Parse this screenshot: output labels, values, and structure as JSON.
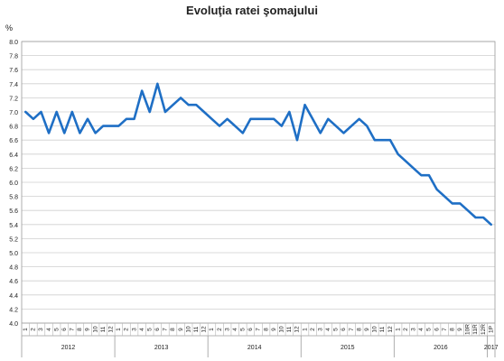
{
  "chart_data": {
    "type": "line",
    "title": "Evoluţia ratei şomajului",
    "ylabel": "%",
    "xlabel": "",
    "ylim": [
      4.0,
      8.0
    ],
    "y_ticks": [
      "4.0",
      "4.2",
      "4.4",
      "4.6",
      "4.8",
      "5.0",
      "5.2",
      "5.4",
      "5.6",
      "5.8",
      "6.0",
      "6.2",
      "6.4",
      "6.6",
      "6.8",
      "7.0",
      "7.2",
      "7.4",
      "7.6",
      "7.8",
      "8.0"
    ],
    "grid": true,
    "legend": "none",
    "line_color": "#1f6fc5",
    "month_labels": [
      "1",
      "2",
      "3",
      "4",
      "5",
      "6",
      "7",
      "8",
      "9",
      "10",
      "11",
      "12",
      "1",
      "2",
      "3",
      "4",
      "5",
      "6",
      "7",
      "8",
      "9",
      "10",
      "11",
      "12",
      "1",
      "2",
      "3",
      "4",
      "5",
      "6",
      "7",
      "8",
      "9",
      "10",
      "11",
      "12",
      "1",
      "2",
      "3",
      "4",
      "5",
      "6",
      "7",
      "8",
      "9",
      "10",
      "11",
      "12",
      "1",
      "2",
      "3",
      "4",
      "5",
      "6",
      "7",
      "8",
      "9",
      "10R",
      "11R",
      "12R",
      "1P"
    ],
    "years": [
      "2012",
      "2013",
      "2014",
      "2015",
      "2016",
      "2017"
    ],
    "series": [
      {
        "values": [
          7.0,
          6.9,
          7.0,
          6.7,
          7.0,
          6.7,
          7.0,
          6.7,
          6.9,
          6.7,
          6.8,
          6.8,
          6.8,
          6.9,
          6.9,
          7.3,
          7.0,
          7.4,
          7.0,
          7.1,
          7.2,
          7.1,
          7.1,
          7.0,
          6.9,
          6.8,
          6.9,
          6.8,
          6.7,
          6.9,
          6.9,
          6.9,
          6.9,
          6.8,
          7.0,
          6.6,
          7.1,
          6.9,
          6.7,
          6.9,
          6.8,
          6.7,
          6.8,
          6.9,
          6.8,
          6.6,
          6.6,
          6.6,
          6.4,
          6.3,
          6.2,
          6.1,
          6.1,
          5.9,
          5.8,
          5.7,
          5.7,
          5.6,
          5.5,
          5.5,
          5.4
        ]
      }
    ]
  }
}
